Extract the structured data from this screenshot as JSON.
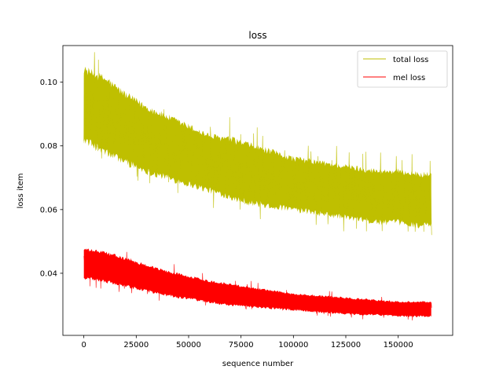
{
  "chart_data": {
    "type": "line",
    "title": "loss",
    "xlabel": "sequence number",
    "ylabel": "loss item",
    "xlim": [
      -10000,
      176000
    ],
    "ylim": [
      0.0205,
      0.1115
    ],
    "x_ticks": [
      0,
      25000,
      50000,
      75000,
      100000,
      125000,
      150000
    ],
    "x_tick_labels": [
      "0",
      "25000",
      "50000",
      "75000",
      "100000",
      "125000",
      "150000"
    ],
    "y_ticks": [
      0.04,
      0.06,
      0.08,
      0.1
    ],
    "y_tick_labels": [
      "0.04",
      "0.06",
      "0.08",
      "0.10"
    ],
    "grid": false,
    "legend_position": "top-right",
    "series": [
      {
        "name": "total loss",
        "color": "#bfbf00",
        "x": [
          0,
          10000,
          20000,
          30000,
          40000,
          50000,
          60000,
          70000,
          80000,
          90000,
          100000,
          110000,
          120000,
          130000,
          140000,
          150000,
          160000,
          166000
        ],
        "upper": [
          0.104,
          0.101,
          0.096,
          0.092,
          0.089,
          0.086,
          0.083,
          0.082,
          0.08,
          0.078,
          0.076,
          0.075,
          0.074,
          0.073,
          0.072,
          0.072,
          0.071,
          0.071
        ],
        "lower": [
          0.082,
          0.078,
          0.075,
          0.072,
          0.07,
          0.068,
          0.066,
          0.064,
          0.062,
          0.061,
          0.06,
          0.059,
          0.058,
          0.057,
          0.056,
          0.056,
          0.055,
          0.055
        ]
      },
      {
        "name": "mel loss",
        "color": "#ff0000",
        "x": [
          0,
          10000,
          20000,
          30000,
          40000,
          50000,
          60000,
          70000,
          80000,
          90000,
          100000,
          110000,
          120000,
          130000,
          140000,
          150000,
          160000,
          166000
        ],
        "upper": [
          0.0475,
          0.0465,
          0.0445,
          0.0425,
          0.0405,
          0.039,
          0.0375,
          0.0365,
          0.0355,
          0.0345,
          0.0335,
          0.033,
          0.0325,
          0.032,
          0.0315,
          0.031,
          0.031,
          0.031
        ],
        "lower": [
          0.0385,
          0.0375,
          0.036,
          0.0345,
          0.033,
          0.032,
          0.031,
          0.03,
          0.0295,
          0.029,
          0.0285,
          0.028,
          0.0275,
          0.027,
          0.027,
          0.0265,
          0.0265,
          0.0265
        ]
      }
    ]
  }
}
